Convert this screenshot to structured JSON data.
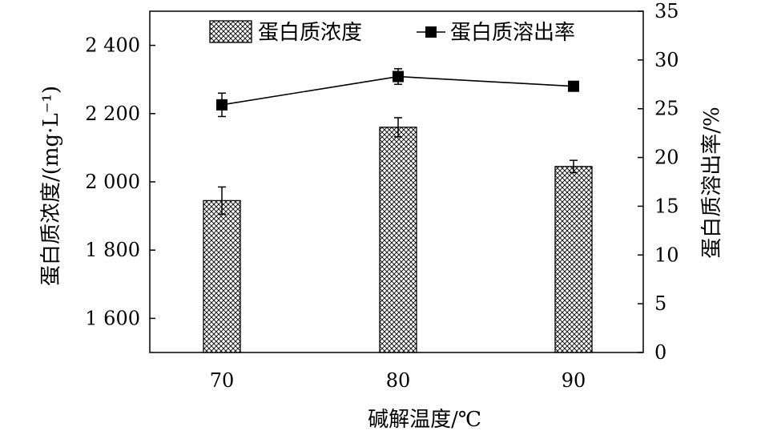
{
  "chart_data": {
    "type": "bar",
    "categories": [
      "70",
      "80",
      "90"
    ],
    "xlabel": "碱解温度/℃",
    "ylabel_left": "蛋白质浓度/(mg·L⁻¹)",
    "ylabel_right": "蛋白质溶出率/%",
    "ylim_left": [
      1500,
      2500
    ],
    "ylim_right": [
      0,
      35
    ],
    "yticks_left": [
      1600,
      1800,
      2000,
      2200,
      2400
    ],
    "yticks_left_labels": [
      "1 600",
      "1 800",
      "2 000",
      "2 200",
      "2 400"
    ],
    "yticks_right": [
      0,
      5,
      10,
      15,
      20,
      25,
      30,
      35
    ],
    "yticks_right_labels": [
      "0",
      "5",
      "10",
      "15",
      "20",
      "25",
      "30",
      "35"
    ],
    "grid": false,
    "legend_position": "top",
    "series": [
      {
        "name": "蛋白质浓度",
        "kind": "bar",
        "axis": "left",
        "values": [
          1945,
          2160,
          2045
        ],
        "errors": [
          40,
          28,
          18
        ]
      },
      {
        "name": "蛋白质溶出率",
        "kind": "line",
        "axis": "right",
        "marker": "square",
        "values": [
          25.4,
          28.3,
          27.3
        ],
        "errors": [
          1.2,
          0.8,
          0.4
        ]
      }
    ]
  }
}
